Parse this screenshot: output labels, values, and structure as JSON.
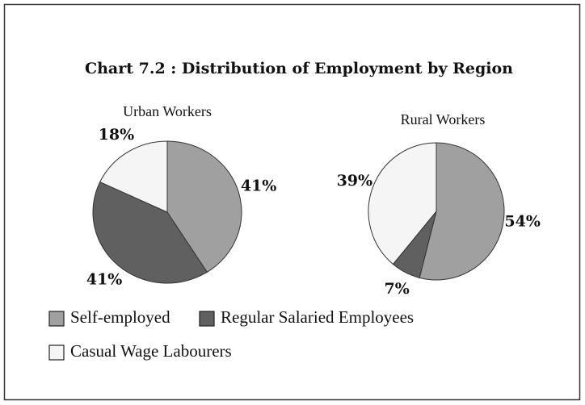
{
  "title": "Chart 7.2 : Distribution of Employment by Region",
  "chart_data": [
    {
      "type": "pie",
      "title": "Urban Workers",
      "categories": [
        "Self-employed",
        "Regular Salaried Employees",
        "Casual Wage Labourers"
      ],
      "values": [
        41,
        41,
        18
      ],
      "value_labels": [
        "41%",
        "41%",
        "18%"
      ],
      "colors": [
        "#a0a0a0",
        "#606060",
        "#f5f5f5"
      ]
    },
    {
      "type": "pie",
      "title": "Rural Workers",
      "categories": [
        "Self-employed",
        "Regular Salaried Employees",
        "Casual Wage Labourers"
      ],
      "values": [
        54,
        7,
        39
      ],
      "value_labels": [
        "54%",
        "7%",
        "39%"
      ],
      "colors": [
        "#a0a0a0",
        "#606060",
        "#f5f5f5"
      ]
    }
  ]
}
